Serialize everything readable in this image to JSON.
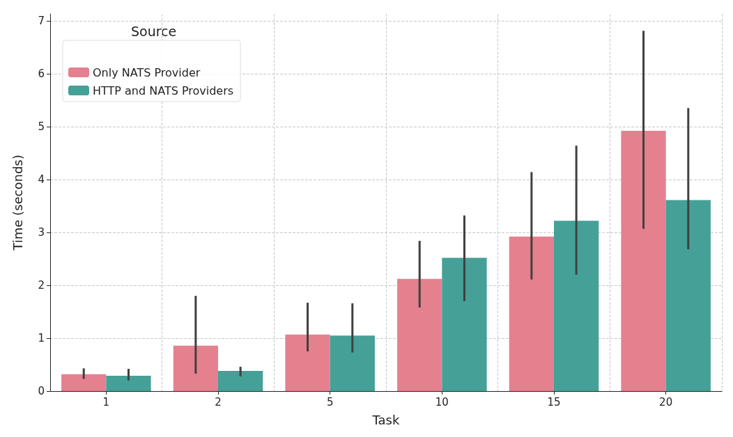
{
  "chart_data": {
    "type": "bar",
    "xlabel": "Task",
    "ylabel": "Time (seconds)",
    "legend_title": "Source",
    "categories": [
      "1",
      "2",
      "5",
      "10",
      "15",
      "20"
    ],
    "series": [
      {
        "name": "Only NATS Provider",
        "color": "#e5808f",
        "values": [
          0.32,
          0.86,
          1.07,
          2.12,
          2.92,
          4.92
        ],
        "errors": [
          [
            0.23,
            0.43
          ],
          [
            0.33,
            1.8
          ],
          [
            0.75,
            1.67
          ],
          [
            1.58,
            2.84
          ],
          [
            2.11,
            4.14
          ],
          [
            3.07,
            6.81
          ]
        ]
      },
      {
        "name": "HTTP and NATS Providers",
        "color": "#45a097",
        "values": [
          0.29,
          0.38,
          1.05,
          2.52,
          3.22,
          3.61
        ],
        "errors": [
          [
            0.2,
            0.42
          ],
          [
            0.28,
            0.46
          ],
          [
            0.73,
            1.66
          ],
          [
            1.7,
            3.32
          ],
          [
            2.2,
            4.64
          ],
          [
            2.68,
            5.35
          ]
        ]
      }
    ],
    "ylim": [
      0,
      7.13
    ],
    "yticks": [
      0,
      1,
      2,
      3,
      4,
      5,
      6,
      7
    ],
    "grid": true,
    "legend": "top left"
  }
}
